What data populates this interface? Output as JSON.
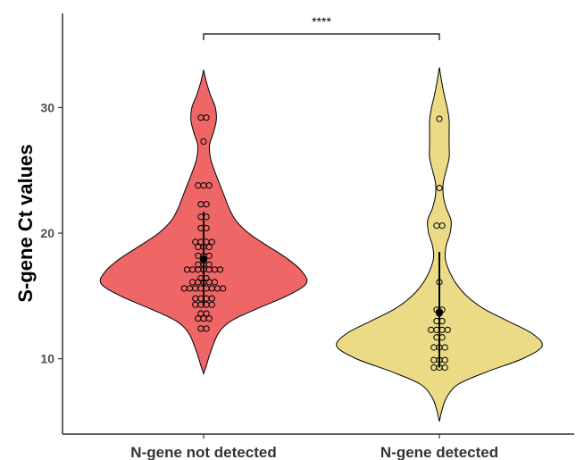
{
  "chart_data": {
    "type": "violin",
    "ylabel": "S-gene Ct values",
    "xlabel": "",
    "ylim": [
      4.0,
      37.5
    ],
    "yticks": [
      10,
      20,
      30
    ],
    "grid": false,
    "legend": "none",
    "significance": {
      "label": "****",
      "between": [
        "N-gene not detected",
        "N-gene detected"
      ]
    },
    "groups": [
      {
        "name": "N-gene not detected",
        "color": "#ee6666",
        "min": 8.8,
        "max": 33.0,
        "mean": 17.9,
        "sd_low": 14.2,
        "sd_high": 21.7,
        "density": [
          [
            8.8,
            0.0
          ],
          [
            9.5,
            0.3
          ],
          [
            10.5,
            0.7
          ],
          [
            12.0,
            1.5
          ],
          [
            13.0,
            2.8
          ],
          [
            14.0,
            5.5
          ],
          [
            15.0,
            8.5
          ],
          [
            16.0,
            10.5
          ],
          [
            17.0,
            10.0
          ],
          [
            18.0,
            8.5
          ],
          [
            19.0,
            6.5
          ],
          [
            20.0,
            4.6
          ],
          [
            21.0,
            3.3
          ],
          [
            22.0,
            2.6
          ],
          [
            23.0,
            2.1
          ],
          [
            24.0,
            1.6
          ],
          [
            25.0,
            1.1
          ],
          [
            26.0,
            0.7
          ],
          [
            27.0,
            0.6
          ],
          [
            28.0,
            1.0
          ],
          [
            29.0,
            1.3
          ],
          [
            30.0,
            1.2
          ],
          [
            31.0,
            0.7
          ],
          [
            32.0,
            0.3
          ],
          [
            33.0,
            0.0
          ]
        ],
        "points": [
          12.4,
          12.4,
          13.2,
          13.2,
          13.2,
          13.6,
          13.6,
          14.3,
          14.3,
          14.3,
          14.3,
          14.8,
          14.8,
          14.8,
          14.8,
          15.6,
          15.6,
          15.6,
          15.6,
          15.6,
          15.6,
          15.6,
          15.6,
          16.1,
          16.1,
          16.1,
          16.1,
          16.1,
          16.4,
          16.4,
          17.1,
          17.1,
          17.1,
          17.1,
          17.1,
          17.1,
          17.1,
          17.5,
          17.5,
          17.5,
          18.2,
          18.2,
          18.2,
          18.9,
          18.9,
          18.9,
          19.3,
          19.3,
          19.3,
          19.3,
          20.4,
          20.4,
          21.3,
          21.3,
          22.3,
          22.3,
          23.8,
          23.8,
          23.8,
          27.3,
          29.2,
          29.2
        ]
      },
      {
        "name": "N-gene detected",
        "color": "#ecdb86",
        "min": 5.0,
        "max": 33.2,
        "mean": 13.7,
        "sd_low": 9.3,
        "sd_high": 18.5,
        "density": [
          [
            5.0,
            0.0
          ],
          [
            6.0,
            0.3
          ],
          [
            7.0,
            0.8
          ],
          [
            8.0,
            2.0
          ],
          [
            9.0,
            5.0
          ],
          [
            10.0,
            8.5
          ],
          [
            11.0,
            10.5
          ],
          [
            12.0,
            9.5
          ],
          [
            13.0,
            7.0
          ],
          [
            14.0,
            4.5
          ],
          [
            15.0,
            2.8
          ],
          [
            16.0,
            1.7
          ],
          [
            17.0,
            1.0
          ],
          [
            18.0,
            0.6
          ],
          [
            19.0,
            0.7
          ],
          [
            20.0,
            1.1
          ],
          [
            21.0,
            1.2
          ],
          [
            22.0,
            0.7
          ],
          [
            23.0,
            0.4
          ],
          [
            24.0,
            0.4
          ],
          [
            25.0,
            0.7
          ],
          [
            26.0,
            1.0
          ],
          [
            27.0,
            1.0
          ],
          [
            28.0,
            1.0
          ],
          [
            29.0,
            1.0
          ],
          [
            30.0,
            0.8
          ],
          [
            31.0,
            0.5
          ],
          [
            32.0,
            0.25
          ],
          [
            33.2,
            0.0
          ]
        ],
        "points": [
          9.3,
          9.3,
          9.3,
          9.9,
          9.9,
          9.9,
          10.9,
          10.9,
          10.9,
          11.7,
          11.7,
          12.3,
          12.3,
          12.3,
          12.3,
          13.0,
          13.0,
          13.6,
          13.9,
          13.9,
          16.1,
          20.6,
          20.6,
          23.6,
          29.1
        ]
      }
    ]
  }
}
